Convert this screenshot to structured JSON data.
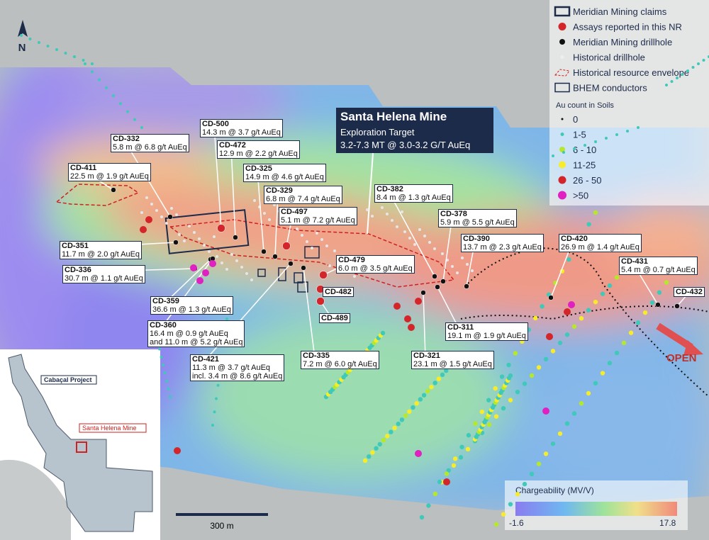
{
  "north": "N",
  "legend": {
    "items": [
      "Meridian Mining claims",
      "Assays reported in this NR",
      "Meridian Mining drillhole",
      "Historical drillhole",
      "Historical resource envelope",
      "BHEM conductors"
    ],
    "soil_title": "Au count in Soils",
    "soil_items": [
      "0",
      "1-5",
      "6 - 10",
      "11-25",
      "26 - 50",
      ">50"
    ]
  },
  "target": {
    "title": "Santa Helena Mine",
    "subtitle": "Exploration Target",
    "detail": "3.2-7.3 MT @ 3.0-3.2 G/T AuEq"
  },
  "drillholes": [
    {
      "id": "CD-500",
      "lines": [
        "14.3 m @ 3.7 g/t AuEq"
      ]
    },
    {
      "id": "CD-332",
      "lines": [
        "5.8 m @ 6.8 g/t AuEq"
      ]
    },
    {
      "id": "CD-472",
      "lines": [
        "12.9 m @ 2.2 g/t AuEq"
      ]
    },
    {
      "id": "CD-411",
      "lines": [
        "22.5 m @ 1.9 g/t AuEq"
      ]
    },
    {
      "id": "CD-325",
      "lines": [
        "14.9 m @ 4.6 g/t AuEq"
      ]
    },
    {
      "id": "CD-329",
      "lines": [
        "6.8 m @ 7.4 g/t AuEq"
      ]
    },
    {
      "id": "CD-382",
      "lines": [
        "8.4 m @ 1.3 g/t AuEq"
      ]
    },
    {
      "id": "CD-497",
      "lines": [
        "5.1 m @ 7.2 g/t AuEq"
      ]
    },
    {
      "id": "CD-378",
      "lines": [
        "5.9 m @ 5.5 g/t AuEq"
      ]
    },
    {
      "id": "CD-351",
      "lines": [
        "11.7 m @ 2.0 g/t AuEq"
      ]
    },
    {
      "id": "CD-390",
      "lines": [
        "13.7 m @ 2.3 g/t AuEq"
      ]
    },
    {
      "id": "CD-420",
      "lines": [
        "26.9 m @ 1.4 g/t AuEq"
      ]
    },
    {
      "id": "CD-479",
      "lines": [
        "6.0 m @ 3.5 g/t AuEq"
      ]
    },
    {
      "id": "CD-431",
      "lines": [
        "5.4 m @ 0.7 g/t AuEq"
      ]
    },
    {
      "id": "CD-336",
      "lines": [
        "30.7 m @ 1.1 g/t AuEq"
      ]
    },
    {
      "id": "CD-482",
      "lines": []
    },
    {
      "id": "CD-432",
      "lines": []
    },
    {
      "id": "CD-359",
      "lines": [
        "36.6 m @ 1.3 g/t AuEq"
      ]
    },
    {
      "id": "CD-489",
      "lines": []
    },
    {
      "id": "CD-360",
      "lines": [
        "16.4 m @ 0.9 g/t AuEq",
        "and 11.0 m @ 5.2 g/t AuEq"
      ]
    },
    {
      "id": "CD-311",
      "lines": [
        "19.1 m @ 1.9 g/t AuEq"
      ]
    },
    {
      "id": "CD-335",
      "lines": [
        "7.2 m @ 6.0 g/t AuEq"
      ]
    },
    {
      "id": "CD-321",
      "lines": [
        "23.1 m @ 1.5 g/t AuEq"
      ]
    },
    {
      "id": "CD-421",
      "lines": [
        "11.3 m @ 3.7 g/t AuEq",
        "incl. 3.4 m @ 8.6 g/t AuEq"
      ]
    }
  ],
  "open": "OPEN",
  "inset": {
    "project": "Cabaçal Project",
    "mine": "Santa Helena Mine"
  },
  "scale": "300 m",
  "colorbar": {
    "title": "Chargeability (MV/V)",
    "min": -1.6,
    "max": 17.8
  }
}
